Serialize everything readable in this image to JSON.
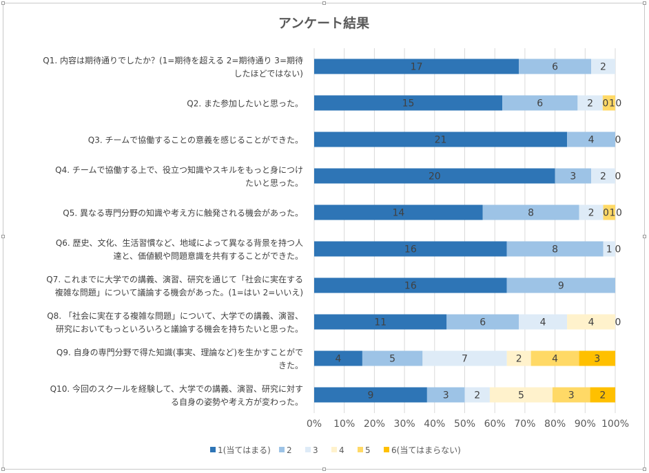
{
  "chart_data": {
    "type": "bar",
    "orientation": "horizontal",
    "stacked": "percent",
    "title": "アンケート結果",
    "categories": [
      [
        "Q1. 内容は期待通りでしたか？(1=期待を超える 2=期待通り 3=期待",
        "したほどではない)"
      ],
      [
        "Q2. また参加したいと思った。"
      ],
      [
        "Q3. チームで協働することの意義を感じることができた。"
      ],
      [
        "Q4. チームで協働する上で、役立つ知識やスキルをもっと身につけ",
        "たいと思った。"
      ],
      [
        "Q5. 異なる専門分野の知識や考え方に触発される機会があった。"
      ],
      [
        "Q6. 歴史、文化、生活習慣など、地域によって異なる背景を持つ人",
        "達と、価値観や問題意識を共有することができた。"
      ],
      [
        "Q7. これまでに大学での講義、演習、研究を通じて「社会に実在する",
        "複雑な問題」について議論する機会があった。(1=はい 2=いいえ)"
      ],
      [
        "Q8. 「社会に実在する複雑な問題」について、大学での講義、演習、",
        "研究においてもっといろいろと議論する機会を持ちたいと思った。"
      ],
      [
        "Q9. 自身の専門分野で得た知識(事実、理論など)を生かすことがで",
        "きた。"
      ],
      [
        "Q10. 今回のスクールを経験して、大学での講義、演習、研究に対す",
        "る自身の姿勢や考え方が変わった。"
      ]
    ],
    "series": [
      {
        "name": "1(当てはまる)",
        "color": "#2e75b6",
        "values": [
          17,
          15,
          21,
          20,
          14,
          16,
          16,
          11,
          4,
          9
        ]
      },
      {
        "name": "2",
        "color": "#9dc3e6",
        "values": [
          6,
          6,
          4,
          3,
          8,
          8,
          9,
          6,
          5,
          3
        ]
      },
      {
        "name": "3",
        "color": "#deebf7",
        "values": [
          2,
          2,
          0,
          2,
          2,
          1,
          0,
          4,
          7,
          2
        ]
      },
      {
        "name": "4",
        "color": "#fff2cc",
        "values": [
          0,
          0,
          0,
          0,
          0,
          0,
          0,
          4,
          2,
          5
        ]
      },
      {
        "name": "5",
        "color": "#ffd966",
        "values": [
          0,
          1,
          0,
          0,
          1,
          0,
          0,
          0,
          4,
          3
        ]
      },
      {
        "name": "6(当てはまらない)",
        "color": "#ffc000",
        "values": [
          0,
          0,
          0,
          0,
          0,
          0,
          0,
          0,
          3,
          2
        ]
      }
    ],
    "data_labels": [
      [
        "17",
        "6",
        "2",
        "",
        "",
        ""
      ],
      [
        "15",
        "6",
        "2",
        "0",
        "1",
        "0"
      ],
      [
        "21",
        "4",
        "0",
        "",
        "",
        ""
      ],
      [
        "20",
        "3",
        "2",
        "0",
        "",
        ""
      ],
      [
        "14",
        "8",
        "2",
        "0",
        "1",
        "0"
      ],
      [
        "16",
        "8",
        "1",
        "0",
        "",
        ""
      ],
      [
        "16",
        "9",
        "",
        "",
        "",
        ""
      ],
      [
        "11",
        "6",
        "4",
        "4",
        "0",
        ""
      ],
      [
        "4",
        "5",
        "7",
        "2",
        "4",
        "3"
      ],
      [
        "9",
        "3",
        "2",
        "5",
        "3",
        "2"
      ]
    ],
    "x_ticks": [
      "0%",
      "10%",
      "20%",
      "30%",
      "40%",
      "50%",
      "60%",
      "70%",
      "80%",
      "90%",
      "100%"
    ],
    "xlim": [
      0,
      100
    ],
    "grid": "vertical",
    "legend": "bottom"
  }
}
